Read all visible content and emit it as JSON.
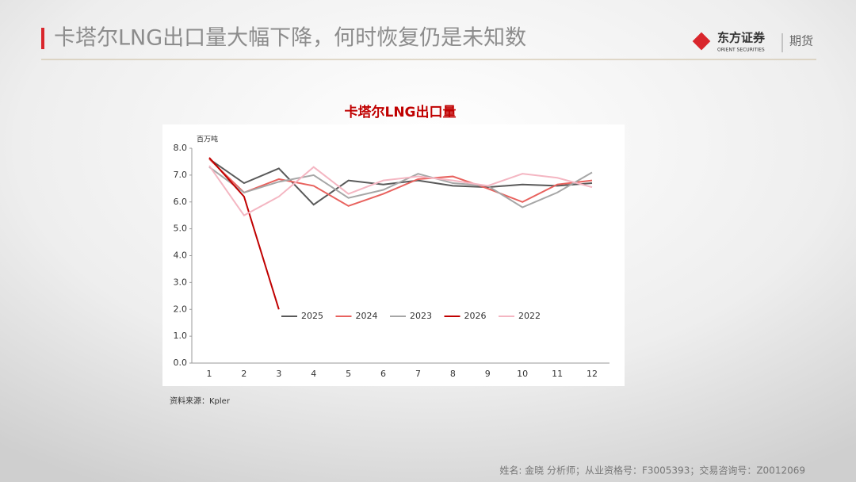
{
  "header": {
    "title": "卡塔尔LNG出口量大幅下降，何时恢复仍是未知数",
    "brand": "东方证券",
    "brand_en": "ORIENT SECURITIES",
    "division": "期货"
  },
  "footer": "姓名: 金晓 分析师；从业资格号：F3005393；交易咨询号：Z0012069",
  "source": "资料来源：Kpler",
  "chart_data": {
    "type": "line",
    "title": "卡塔尔LNG出口量",
    "y_label": "百万吨",
    "categories": [
      "1",
      "2",
      "3",
      "4",
      "5",
      "6",
      "7",
      "8",
      "9",
      "10",
      "11",
      "12"
    ],
    "series": [
      {
        "name": "2025",
        "color": "#595959",
        "values": [
          7.6,
          6.7,
          7.25,
          5.9,
          6.8,
          6.65,
          6.8,
          6.6,
          6.55,
          6.65,
          6.6,
          6.7
        ]
      },
      {
        "name": "2024",
        "color": "#e8625e",
        "values": [
          7.6,
          6.35,
          6.85,
          6.6,
          5.85,
          6.3,
          6.85,
          6.95,
          6.5,
          6.0,
          6.65,
          6.8
        ]
      },
      {
        "name": "2023",
        "color": "#a6a6a6",
        "values": [
          7.3,
          6.35,
          6.75,
          7.0,
          6.15,
          6.45,
          7.05,
          6.7,
          6.6,
          5.8,
          6.35,
          7.1
        ]
      },
      {
        "name": "2026",
        "color": "#c00000",
        "values": [
          7.65,
          6.2,
          2.0,
          null,
          null,
          null,
          null,
          null,
          null,
          null,
          null,
          null
        ]
      },
      {
        "name": "2022",
        "color": "#f4b6c2",
        "values": [
          7.35,
          5.5,
          6.2,
          7.3,
          6.3,
          6.8,
          6.95,
          6.8,
          6.6,
          7.05,
          6.9,
          6.55
        ]
      }
    ],
    "ylim": [
      0,
      8
    ],
    "yticks": [
      {
        "value": 0,
        "label": "0.0"
      },
      {
        "value": 1,
        "label": "1.0"
      },
      {
        "value": 2,
        "label": "2.0"
      },
      {
        "value": 3,
        "label": "3.0"
      },
      {
        "value": 4,
        "label": "4.0"
      },
      {
        "value": 5,
        "label": "5.0"
      },
      {
        "value": 6,
        "label": "6.0"
      },
      {
        "value": 7,
        "label": "7.0"
      },
      {
        "value": 8,
        "label": "8.0"
      }
    ],
    "grid": false,
    "legend": "inside"
  }
}
